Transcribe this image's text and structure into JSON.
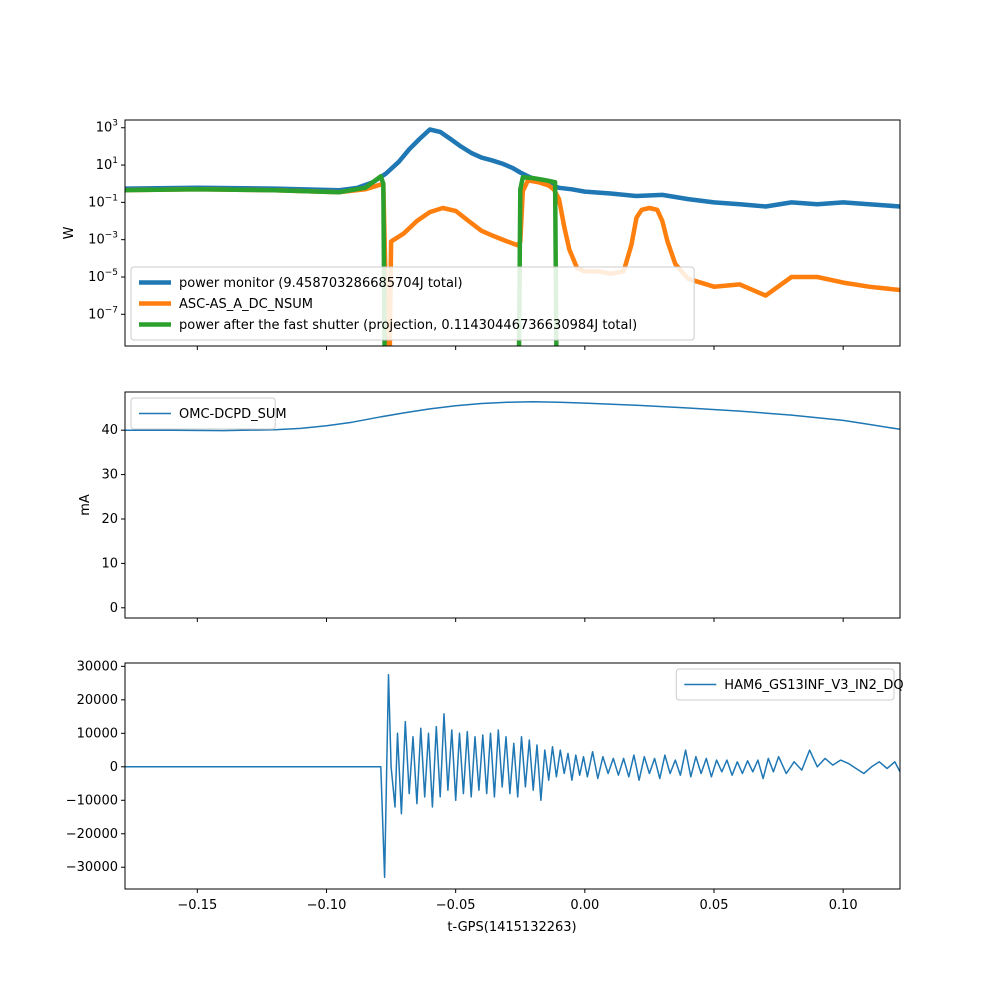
{
  "xlabel": "t-GPS(1415132263)",
  "x_ticks": [
    "−0.15",
    "−0.10",
    "−0.05",
    "0.00",
    "0.05",
    "0.10"
  ],
  "chart_data": [
    {
      "type": "line",
      "panel": "top",
      "ylabel": "W",
      "yscale": "log",
      "xlim": [
        -0.178,
        0.122
      ],
      "ylim": [
        2e-09,
        2600
      ],
      "y_ticks": [
        "10⁷",
        "10⁵",
        "10³",
        "10¹",
        "10¹",
        "10³"
      ],
      "y_tick_exponents": [
        "−7",
        "−5",
        "−3",
        "−1",
        "1",
        "3"
      ],
      "y_tick_values": [
        1e-07,
        1e-05,
        0.001,
        0.1,
        10,
        1000
      ],
      "legend_position": "lower-left",
      "series": [
        {
          "name": "power monitor (9.458703286685704J total)",
          "color": "#1f77b4",
          "x": [
            -0.178,
            -0.15,
            -0.12,
            -0.095,
            -0.088,
            -0.082,
            -0.077,
            -0.072,
            -0.068,
            -0.064,
            -0.06,
            -0.056,
            -0.052,
            -0.048,
            -0.044,
            -0.04,
            -0.036,
            -0.032,
            -0.028,
            -0.025,
            -0.022,
            -0.018,
            -0.014,
            -0.01,
            -0.005,
            0.0,
            0.01,
            0.02,
            0.03,
            0.04,
            0.05,
            0.06,
            0.07,
            0.08,
            0.09,
            0.1,
            0.11,
            0.122
          ],
          "y": [
            0.55,
            0.6,
            0.55,
            0.45,
            0.6,
            1.2,
            3.5,
            15,
            70,
            250,
            800,
            600,
            250,
            100,
            45,
            25,
            18,
            12,
            7,
            4,
            2.5,
            1.4,
            0.9,
            0.6,
            0.5,
            0.38,
            0.3,
            0.22,
            0.25,
            0.15,
            0.1,
            0.08,
            0.06,
            0.1,
            0.08,
            0.1,
            0.08,
            0.06
          ]
        },
        {
          "name": "ASC-AS_A_DC_NSUM",
          "color": "#ff7f0e",
          "x": [
            -0.178,
            -0.15,
            -0.12,
            -0.095,
            -0.085,
            -0.078,
            -0.0765,
            -0.0755,
            -0.075,
            -0.07,
            -0.065,
            -0.06,
            -0.055,
            -0.05,
            -0.045,
            -0.04,
            -0.035,
            -0.03,
            -0.026,
            -0.025,
            -0.024,
            -0.022,
            -0.018,
            -0.014,
            -0.012,
            -0.01,
            -0.008,
            -0.006,
            -0.003,
            0.0,
            0.005,
            0.01,
            0.015,
            0.018,
            0.02,
            0.022,
            0.025,
            0.028,
            0.03,
            0.032,
            0.035,
            0.04,
            0.05,
            0.06,
            0.07,
            0.08,
            0.09,
            0.1,
            0.11,
            0.122
          ],
          "y": [
            0.45,
            0.5,
            0.45,
            0.35,
            0.5,
            1.0,
            1e-09,
            1e-09,
            0.0008,
            0.0022,
            0.01,
            0.03,
            0.05,
            0.035,
            0.01,
            0.003,
            0.0015,
            0.0008,
            0.0005,
            0.0008,
            0.4,
            1.5,
            1.2,
            0.8,
            0.5,
            0.15,
            0.005,
            0.0003,
            3e-05,
            2e-05,
            2e-05,
            1.5e-05,
            2e-05,
            0.0005,
            0.015,
            0.04,
            0.05,
            0.04,
            0.01,
            0.0008,
            5e-05,
            8e-06,
            3e-06,
            4e-06,
            1e-06,
            1e-05,
            1e-05,
            5e-06,
            3e-06,
            2e-06
          ]
        },
        {
          "name": "power after the fast shutter (projection, 0.11430446736630984J total)",
          "color": "#2ca02c",
          "x": [
            -0.178,
            -0.15,
            -0.12,
            -0.095,
            -0.085,
            -0.079,
            -0.078,
            -0.0775,
            -0.0255,
            -0.025,
            -0.024,
            -0.02,
            -0.015,
            -0.0115,
            -0.011,
            0.122
          ],
          "y": [
            0.45,
            0.5,
            0.45,
            0.35,
            0.6,
            2.5,
            1.0,
            1e-09,
            1e-09,
            0.5,
            2.2,
            2.0,
            1.5,
            1.2,
            1e-09,
            1e-09
          ]
        }
      ]
    },
    {
      "type": "line",
      "panel": "middle",
      "ylabel": "mA",
      "xlim": [
        -0.178,
        0.122
      ],
      "ylim": [
        -2.3,
        48.6
      ],
      "y_ticks": [
        "0",
        "10",
        "20",
        "30",
        "40"
      ],
      "y_tick_values": [
        0,
        10,
        20,
        30,
        40
      ],
      "legend_position": "upper-left",
      "series": [
        {
          "name": "OMC-DCPD_SUM",
          "color": "#1f77b4",
          "x": [
            -0.178,
            -0.16,
            -0.14,
            -0.12,
            -0.11,
            -0.1,
            -0.09,
            -0.08,
            -0.07,
            -0.06,
            -0.05,
            -0.04,
            -0.03,
            -0.02,
            -0.01,
            0.0,
            0.02,
            0.04,
            0.06,
            0.08,
            0.1,
            0.11,
            0.122
          ],
          "y": [
            40.0,
            40.0,
            39.9,
            40.1,
            40.4,
            41.0,
            41.8,
            42.9,
            43.9,
            44.8,
            45.5,
            46.0,
            46.3,
            46.4,
            46.3,
            46.1,
            45.6,
            45.0,
            44.3,
            43.4,
            42.2,
            41.3,
            40.2
          ]
        }
      ]
    },
    {
      "type": "line",
      "panel": "bottom",
      "xlim": [
        -0.178,
        0.122
      ],
      "ylim": [
        -36500,
        31000
      ],
      "y_ticks": [
        "−30000",
        "−20000",
        "−10000",
        "0",
        "10000",
        "20000",
        "30000"
      ],
      "y_tick_values": [
        -30000,
        -20000,
        -10000,
        0,
        10000,
        20000,
        30000
      ],
      "legend_position": "upper-right",
      "series": [
        {
          "name": "HAM6_GS13INF_V3_IN2_DQ",
          "color": "#1f77b4",
          "x": [
            -0.178,
            -0.079,
            -0.0775,
            -0.076,
            -0.075,
            -0.0735,
            -0.0725,
            -0.071,
            -0.0695,
            -0.068,
            -0.0665,
            -0.065,
            -0.0635,
            -0.062,
            -0.0605,
            -0.059,
            -0.0575,
            -0.056,
            -0.0545,
            -0.053,
            -0.0515,
            -0.05,
            -0.0485,
            -0.047,
            -0.0455,
            -0.044,
            -0.0425,
            -0.041,
            -0.0395,
            -0.038,
            -0.0365,
            -0.035,
            -0.0335,
            -0.032,
            -0.0305,
            -0.029,
            -0.0275,
            -0.026,
            -0.0245,
            -0.023,
            -0.0215,
            -0.02,
            -0.0185,
            -0.017,
            -0.0155,
            -0.014,
            -0.0125,
            -0.011,
            -0.0095,
            -0.008,
            -0.0065,
            -0.005,
            -0.0035,
            -0.002,
            -0.0005,
            0.001,
            0.003,
            0.005,
            0.007,
            0.009,
            0.011,
            0.013,
            0.015,
            0.017,
            0.019,
            0.021,
            0.023,
            0.025,
            0.027,
            0.029,
            0.031,
            0.033,
            0.035,
            0.037,
            0.039,
            0.041,
            0.043,
            0.045,
            0.047,
            0.049,
            0.051,
            0.053,
            0.055,
            0.057,
            0.059,
            0.061,
            0.063,
            0.065,
            0.067,
            0.069,
            0.071,
            0.073,
            0.075,
            0.078,
            0.081,
            0.084,
            0.087,
            0.09,
            0.093,
            0.096,
            0.099,
            0.102,
            0.105,
            0.108,
            0.111,
            0.114,
            0.117,
            0.12,
            0.122
          ],
          "y": [
            0,
            0,
            -33000,
            27500,
            0,
            -12000,
            10000,
            -14000,
            13500,
            -8000,
            9000,
            -11000,
            11500,
            -9000,
            10000,
            -12000,
            12000,
            -9000,
            15800,
            -7000,
            11000,
            -10000,
            10000,
            -8000,
            10500,
            -9000,
            9000,
            -7000,
            9500,
            -8000,
            10000,
            -9000,
            11000,
            -6000,
            9000,
            -8000,
            7000,
            -9000,
            9000,
            -6000,
            8000,
            -7000,
            6500,
            -10000,
            5000,
            -4000,
            6000,
            -3000,
            5000,
            -2000,
            4000,
            -4000,
            3500,
            -2500,
            3000,
            -3000,
            4500,
            -3500,
            3000,
            -2000,
            2500,
            -2500,
            2500,
            -3000,
            3500,
            -4000,
            3000,
            -2000,
            2500,
            -3500,
            3500,
            -2000,
            2000,
            -2500,
            5000,
            -3000,
            3000,
            -2000,
            2500,
            -3000,
            2000,
            -1500,
            2000,
            -2500,
            1500,
            -2000,
            1800,
            -1500,
            2000,
            -3500,
            2500,
            -1500,
            3000,
            -2000,
            1500,
            -1000,
            5000,
            0,
            2500,
            500,
            2000,
            1000,
            -500,
            -2000,
            0,
            1500,
            -500,
            1500,
            -1500
          ]
        }
      ]
    }
  ]
}
